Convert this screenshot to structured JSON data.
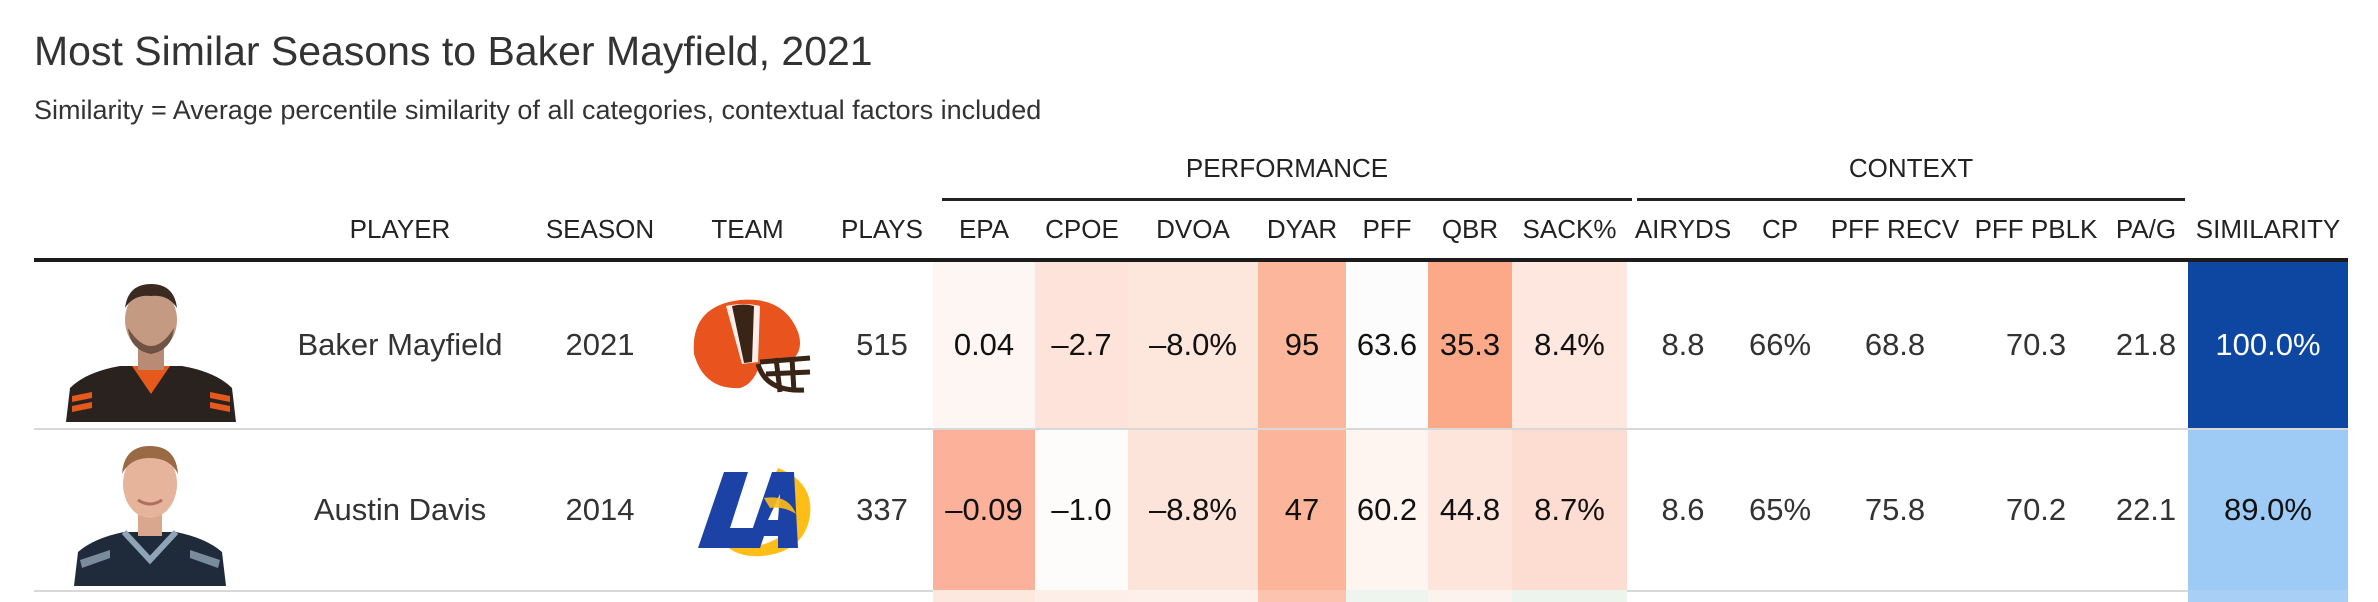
{
  "title": "Most Similar Seasons to Baker Mayfield, 2021",
  "subtitle": "Similarity = Average percentile similarity of all categories, contextual factors included",
  "groups": {
    "performance": "PERFORMANCE",
    "context": "CONTEXT"
  },
  "columns": {
    "player": "PLAYER",
    "season": "SEASON",
    "team": "TEAM",
    "plays": "PLAYS",
    "epa": "EPA",
    "cpoe": "CPOE",
    "dvoa": "DVOA",
    "dyar": "DYAR",
    "pff": "PFF",
    "qbr": "QBR",
    "sack": "SACK%",
    "airyds": "AIRYDS",
    "cp": "CP",
    "pff_recv": "PFF RECV",
    "pff_pblk": "PFF PBLK",
    "pag": "PA/G",
    "similarity": "SIMILARITY"
  },
  "rows": [
    {
      "player": "Baker Mayfield",
      "season": "2021",
      "team_logo": "browns-helmet-icon",
      "plays": "515",
      "epa": "0.04",
      "cpoe": "–2.7",
      "dvoa": "–8.0%",
      "dyar": "95",
      "pff": "63.6",
      "qbr": "35.3",
      "sack": "8.4%",
      "airyds": "8.8",
      "cp": "66%",
      "pff_recv": "68.8",
      "pff_pblk": "70.3",
      "pag": "21.8",
      "similarity": "100.0%",
      "colors": {
        "epa": "#fdf6f2",
        "cpoe": "#fde3d9",
        "dvoa": "#fde6dc",
        "dyar": "#fcb69c",
        "pff": "#fcfcfc",
        "qbr": "#fca98a",
        "sack": "#fee7de",
        "similarity": "#0d47a1"
      }
    },
    {
      "player": "Austin Davis",
      "season": "2014",
      "team_logo": "rams-la-logo-icon",
      "plays": "337",
      "epa": "–0.09",
      "cpoe": "–1.0",
      "dvoa": "–8.8%",
      "dyar": "47",
      "pff": "60.2",
      "qbr": "44.8",
      "sack": "8.7%",
      "airyds": "8.6",
      "cp": "65%",
      "pff_recv": "75.8",
      "pff_pblk": "70.2",
      "pag": "22.1",
      "similarity": "89.0%",
      "colors": {
        "epa": "#fcb29a",
        "cpoe": "#fefcfb",
        "dvoa": "#fde4da",
        "dyar": "#fcb59b",
        "pff": "#fef5f1",
        "qbr": "#fde5dc",
        "sack": "#fdddd2",
        "similarity": "#9ecbf6"
      }
    }
  ]
}
